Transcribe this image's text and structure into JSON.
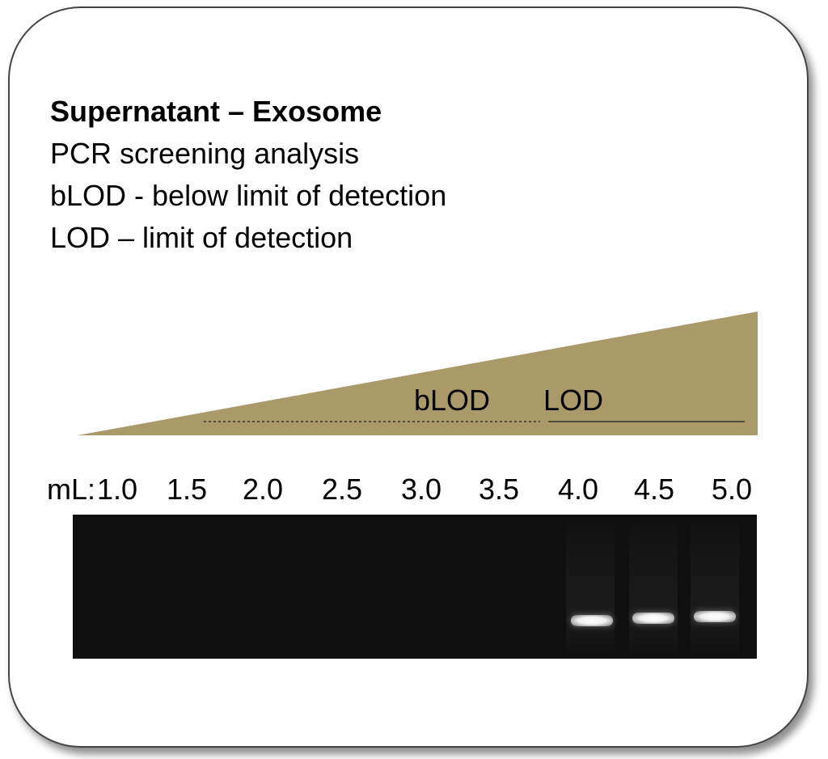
{
  "legend": {
    "title": "Supernatant – Exosome",
    "line1": "PCR screening analysis",
    "line2": "bLOD - below limit of detection",
    "line3": "LOD – limit of detection"
  },
  "wedge": {
    "color": "#aa9a6a",
    "blod_label": "bLOD",
    "lod_label": "LOD"
  },
  "lanes": {
    "unit_label": "mL:",
    "volumes": [
      "1.0",
      "1.5",
      "2.0",
      "2.5",
      "3.0",
      "3.5",
      "4.0",
      "4.5",
      "5.0"
    ],
    "band_present": [
      false,
      false,
      false,
      false,
      false,
      false,
      true,
      true,
      true
    ]
  }
}
